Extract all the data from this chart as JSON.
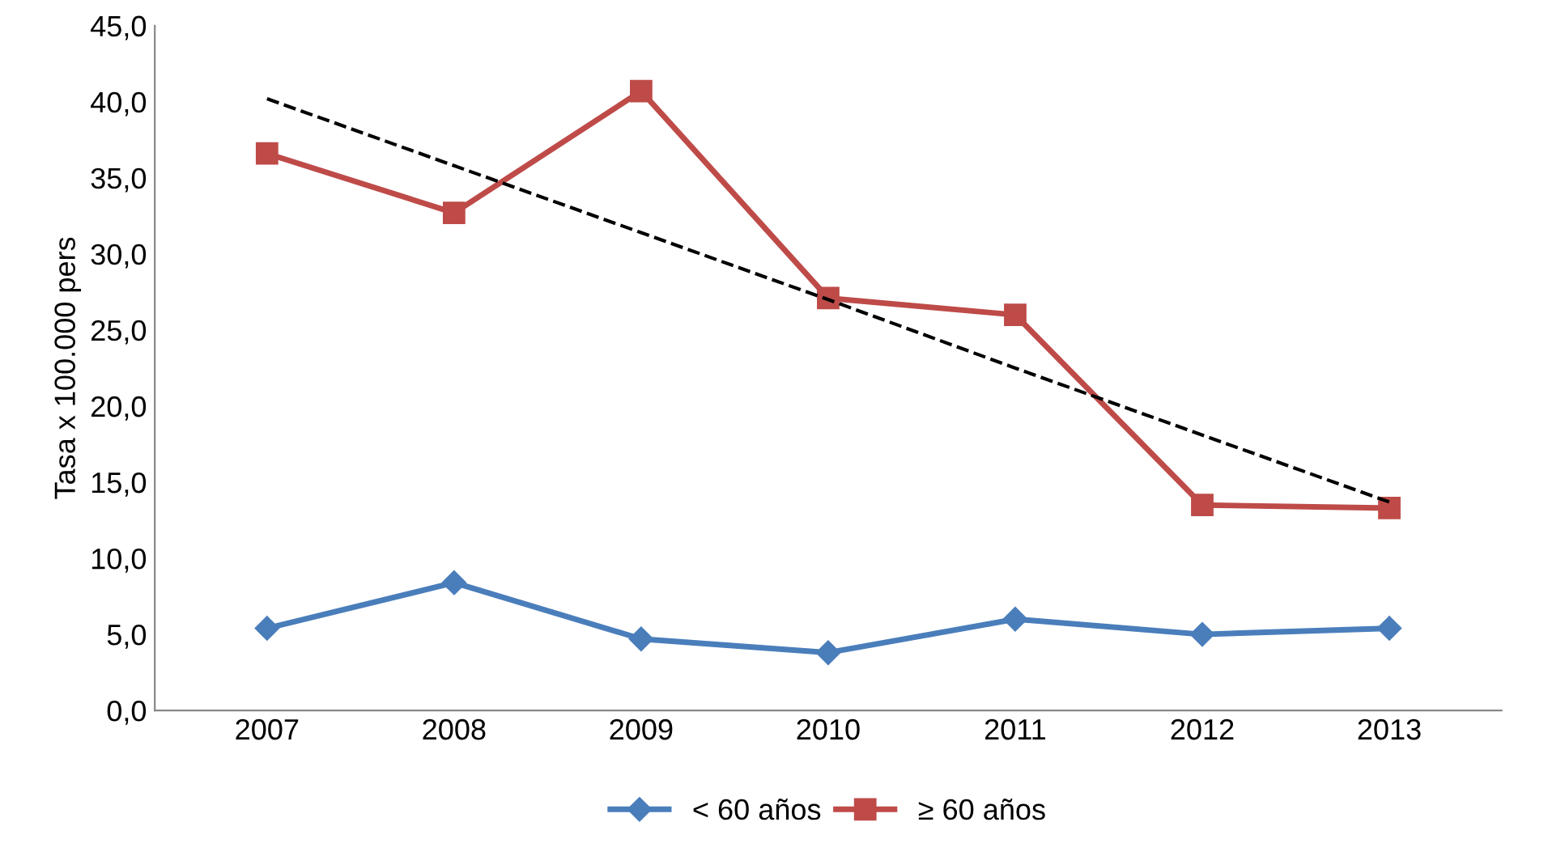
{
  "chart_data": {
    "type": "line",
    "ylabel": "Tasa x 100.000 pers",
    "categories": [
      "2007",
      "2008",
      "2009",
      "2010",
      "2011",
      "2012",
      "2013"
    ],
    "ylim": [
      0,
      45
    ],
    "yticks": [
      {
        "value": 0,
        "label": "0,0"
      },
      {
        "value": 5,
        "label": "5,0"
      },
      {
        "value": 10,
        "label": "10,0"
      },
      {
        "value": 15,
        "label": "15,0"
      },
      {
        "value": 20,
        "label": "20,0"
      },
      {
        "value": 25,
        "label": "25,0"
      },
      {
        "value": 30,
        "label": "30,0"
      },
      {
        "value": 35,
        "label": "35,0"
      },
      {
        "value": 40,
        "label": "40,0"
      },
      {
        "value": 45,
        "label": "45,0"
      }
    ],
    "grid": false,
    "legend": "bottom",
    "series": [
      {
        "name": "< 60 años",
        "color": "#4a7ebb",
        "marker": "diamond",
        "values": [
          5.4,
          8.4,
          4.7,
          3.8,
          6.0,
          5.0,
          5.4
        ]
      },
      {
        "name": "≥ 60 años",
        "color": "#be4b48",
        "marker": "square",
        "values": [
          36.6,
          32.7,
          40.7,
          27.1,
          26.0,
          13.5,
          13.3
        ]
      },
      {
        "type": "line",
        "color": "#000000",
        "marker": "none",
        "line_style": "dashed",
        "values": [
          40.2,
          35.8,
          31.4,
          27.0,
          22.5,
          18.1,
          13.7
        ]
      }
    ]
  }
}
